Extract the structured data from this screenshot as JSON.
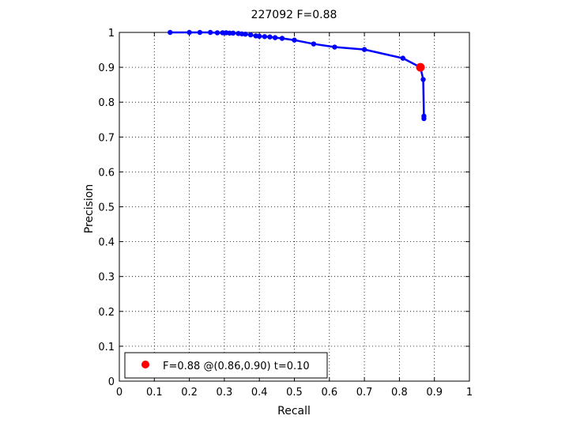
{
  "chart_data": {
    "type": "line",
    "title": "227092 F=0.88",
    "xlabel": "Recall",
    "ylabel": "Precision",
    "xlim": [
      0,
      1
    ],
    "ylim": [
      0,
      1
    ],
    "grid": true,
    "xticks": [
      "0",
      "0.1",
      "0.2",
      "0.3",
      "0.4",
      "0.5",
      "0.6",
      "0.7",
      "0.8",
      "0.9",
      "1"
    ],
    "yticks": [
      "0",
      "0.1",
      "0.2",
      "0.3",
      "0.4",
      "0.5",
      "0.6",
      "0.7",
      "0.8",
      "0.9",
      "1"
    ],
    "series": [
      {
        "color": "#0000ff",
        "points": [
          [
            0.145,
            1.0
          ],
          [
            0.2,
            1.0
          ],
          [
            0.23,
            1.0
          ],
          [
            0.26,
            1.0
          ],
          [
            0.28,
            0.999
          ],
          [
            0.295,
            0.999
          ],
          [
            0.305,
            0.999
          ],
          [
            0.315,
            0.998
          ],
          [
            0.325,
            0.998
          ],
          [
            0.34,
            0.997
          ],
          [
            0.35,
            0.996
          ],
          [
            0.36,
            0.995
          ],
          [
            0.375,
            0.993
          ],
          [
            0.39,
            0.99
          ],
          [
            0.4,
            0.989
          ],
          [
            0.415,
            0.988
          ],
          [
            0.43,
            0.987
          ],
          [
            0.445,
            0.985
          ],
          [
            0.465,
            0.983
          ],
          [
            0.5,
            0.978
          ],
          [
            0.555,
            0.967
          ],
          [
            0.615,
            0.958
          ],
          [
            0.7,
            0.951
          ],
          [
            0.81,
            0.926
          ],
          [
            0.86,
            0.9
          ],
          [
            0.868,
            0.865
          ],
          [
            0.87,
            0.76
          ],
          [
            0.87,
            0.753
          ]
        ]
      }
    ],
    "highlight": {
      "x": 0.86,
      "y": 0.9,
      "color": "#ff0000"
    },
    "legend": {
      "position": "bottom-left",
      "text": "F=0.88 @(0.86,0.90) t=0.10",
      "marker_color": "#ff0000"
    }
  }
}
